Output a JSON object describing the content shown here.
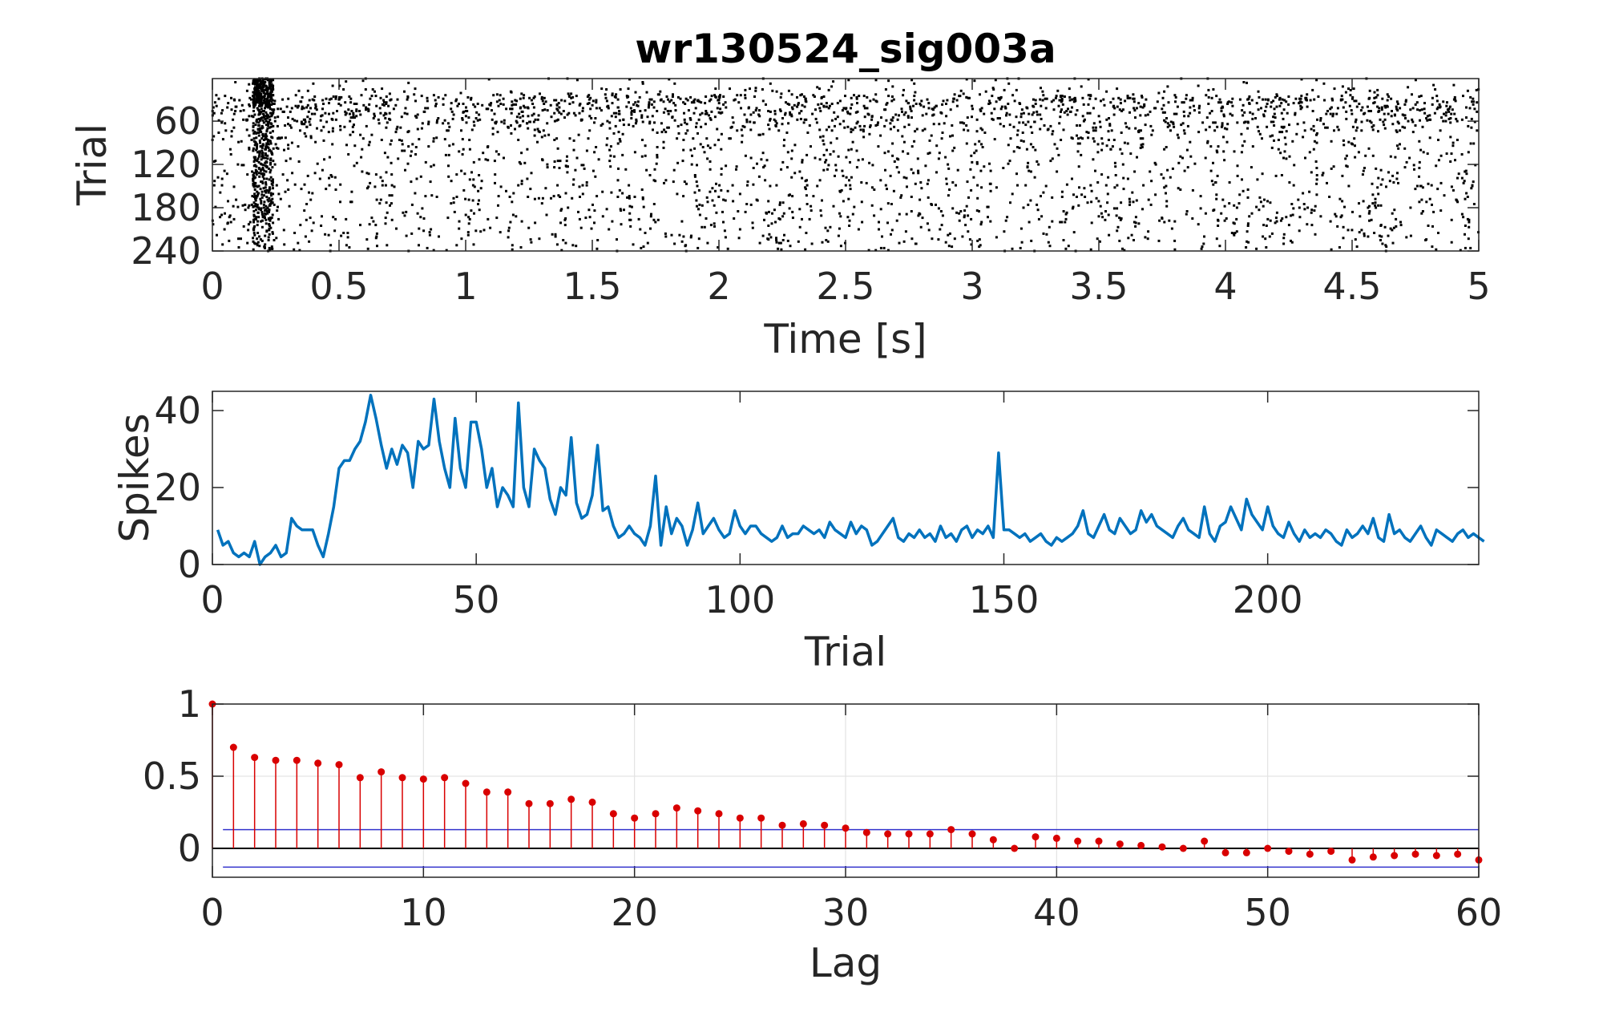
{
  "figure": {
    "title": "wr130524_sig003a"
  },
  "chart_data": [
    {
      "type": "scatter",
      "subtype": "raster",
      "xlabel": "Time [s]",
      "ylabel": "Trial",
      "xlim": [
        0,
        5
      ],
      "ylim": [
        1,
        240
      ],
      "y_reversed": true,
      "xticks": [
        0,
        0.5,
        1,
        1.5,
        2,
        2.5,
        3,
        3.5,
        4,
        4.5,
        5
      ],
      "xtick_labels": [
        "0",
        "0.5",
        "1",
        "1.5",
        "2",
        "2.5",
        "3",
        "3.5",
        "4",
        "4.5",
        "5"
      ],
      "yticks": [
        60,
        120,
        180,
        240
      ],
      "ytick_labels": [
        "60",
        "120",
        "180",
        "240"
      ],
      "grid": false,
      "marker_color": "#000000",
      "spike_count_profile": [
        9,
        5,
        6,
        3,
        2,
        3,
        2,
        6,
        0,
        2,
        3,
        5,
        2,
        3,
        12,
        10,
        9,
        9,
        9,
        5,
        2,
        8,
        15,
        25,
        27,
        27,
        30,
        32,
        37,
        44,
        38,
        31,
        25,
        30,
        26,
        31,
        29,
        20,
        32,
        30,
        31,
        43,
        32,
        25,
        20,
        38,
        25,
        20,
        37,
        37,
        30,
        20,
        25,
        15,
        20,
        18,
        15,
        42,
        20,
        15,
        30,
        27,
        25,
        17,
        13,
        20,
        18,
        33,
        16,
        12,
        13,
        18,
        31,
        14,
        15,
        10,
        7,
        8,
        10,
        8,
        7,
        5,
        10,
        23,
        5,
        15,
        8,
        12,
        10,
        5,
        9,
        16,
        8,
        10,
        12,
        9,
        7,
        8,
        14,
        10,
        8,
        10,
        10,
        8,
        7,
        6,
        7,
        10,
        7,
        8,
        8,
        10,
        9,
        8,
        9,
        7,
        11,
        9,
        8,
        7,
        11,
        8,
        10,
        9,
        5,
        6,
        8,
        10,
        12,
        7,
        6,
        8,
        7,
        9,
        7,
        8,
        6,
        10,
        7,
        8,
        6,
        9,
        10,
        7,
        9,
        8,
        10,
        7,
        29,
        9,
        9,
        8,
        7,
        8,
        6,
        7,
        8,
        6,
        5,
        7,
        6,
        7,
        8,
        10,
        14,
        8,
        7,
        10,
        13,
        9,
        8,
        12,
        10,
        8,
        9,
        14,
        11,
        13,
        10,
        9,
        8,
        7,
        10,
        12,
        9,
        8,
        7,
        15,
        8,
        6,
        10,
        11,
        15,
        12,
        9,
        17,
        13,
        11,
        9,
        15,
        10,
        8,
        7,
        11,
        8,
        6,
        9,
        7,
        8,
        7,
        9,
        8,
        6,
        5,
        9,
        7,
        8,
        10,
        8,
        12,
        7,
        6,
        13,
        8,
        9,
        7,
        6,
        8,
        10,
        7,
        5,
        9,
        8,
        7,
        6,
        8,
        9,
        7,
        8,
        7,
        6
      ],
      "early_response": {
        "center_s": 0.2,
        "width_s": 0.08,
        "trials": [
          1,
          240
        ]
      }
    },
    {
      "type": "line",
      "xlabel": "Trial",
      "ylabel": "Spikes",
      "xlim": [
        0,
        240
      ],
      "ylim": [
        0,
        45
      ],
      "xticks": [
        0,
        50,
        100,
        150,
        200
      ],
      "xtick_labels": [
        "0",
        "50",
        "100",
        "150",
        "200"
      ],
      "yticks": [
        0,
        20,
        40
      ],
      "ytick_labels": [
        "0",
        "20",
        "40"
      ],
      "grid": false,
      "series": [
        {
          "color": "#0072BD",
          "x_start": 1,
          "values": [
            9,
            5,
            6,
            3,
            2,
            3,
            2,
            6,
            0,
            2,
            3,
            5,
            2,
            3,
            12,
            10,
            9,
            9,
            9,
            5,
            2,
            8,
            15,
            25,
            27,
            27,
            30,
            32,
            37,
            44,
            38,
            31,
            25,
            30,
            26,
            31,
            29,
            20,
            32,
            30,
            31,
            43,
            32,
            25,
            20,
            38,
            25,
            20,
            37,
            37,
            30,
            20,
            25,
            15,
            20,
            18,
            15,
            42,
            20,
            15,
            30,
            27,
            25,
            17,
            13,
            20,
            18,
            33,
            16,
            12,
            13,
            18,
            31,
            14,
            15,
            10,
            7,
            8,
            10,
            8,
            7,
            5,
            10,
            23,
            5,
            15,
            8,
            12,
            10,
            5,
            9,
            16,
            8,
            10,
            12,
            9,
            7,
            8,
            14,
            10,
            8,
            10,
            10,
            8,
            7,
            6,
            7,
            10,
            7,
            8,
            8,
            10,
            9,
            8,
            9,
            7,
            11,
            9,
            8,
            7,
            11,
            8,
            10,
            9,
            5,
            6,
            8,
            10,
            12,
            7,
            6,
            8,
            7,
            9,
            7,
            8,
            6,
            10,
            7,
            8,
            6,
            9,
            10,
            7,
            9,
            8,
            10,
            7,
            29,
            9,
            9,
            8,
            7,
            8,
            6,
            7,
            8,
            6,
            5,
            7,
            6,
            7,
            8,
            10,
            14,
            8,
            7,
            10,
            13,
            9,
            8,
            12,
            10,
            8,
            9,
            14,
            11,
            13,
            10,
            9,
            8,
            7,
            10,
            12,
            9,
            8,
            7,
            15,
            8,
            6,
            10,
            11,
            15,
            12,
            9,
            17,
            13,
            11,
            9,
            15,
            10,
            8,
            7,
            11,
            8,
            6,
            9,
            7,
            8,
            7,
            9,
            8,
            6,
            5,
            9,
            7,
            8,
            10,
            8,
            12,
            7,
            6,
            13,
            8,
            9,
            7,
            6,
            8,
            10,
            7,
            5,
            9,
            8,
            7,
            6,
            8,
            9,
            7,
            8,
            7,
            6
          ]
        }
      ]
    },
    {
      "type": "scatter",
      "subtype": "stem",
      "xlabel": "Lag",
      "ylabel": "",
      "xlim": [
        0,
        60
      ],
      "ylim": [
        -0.2,
        1
      ],
      "xticks": [
        0,
        10,
        20,
        30,
        40,
        50,
        60
      ],
      "xtick_labels": [
        "0",
        "10",
        "20",
        "30",
        "40",
        "50",
        "60"
      ],
      "yticks": [
        0,
        0.5,
        1
      ],
      "ytick_labels": [
        "0",
        "0.5",
        "1"
      ],
      "grid": true,
      "stem_color": "#D90000",
      "confidence_bound": 0.13,
      "confidence_color": "#3333CC",
      "lags": [
        0,
        1,
        2,
        3,
        4,
        5,
        6,
        7,
        8,
        9,
        10,
        11,
        12,
        13,
        14,
        15,
        16,
        17,
        18,
        19,
        20,
        21,
        22,
        23,
        24,
        25,
        26,
        27,
        28,
        29,
        30,
        31,
        32,
        33,
        34,
        35,
        36,
        37,
        38,
        39,
        40,
        41,
        42,
        43,
        44,
        45,
        46,
        47,
        48,
        49,
        50,
        51,
        52,
        53,
        54,
        55,
        56,
        57,
        58,
        59,
        60
      ],
      "values": [
        1.0,
        0.7,
        0.63,
        0.61,
        0.61,
        0.59,
        0.58,
        0.49,
        0.53,
        0.49,
        0.48,
        0.49,
        0.45,
        0.39,
        0.39,
        0.31,
        0.31,
        0.34,
        0.32,
        0.24,
        0.21,
        0.24,
        0.28,
        0.26,
        0.24,
        0.21,
        0.21,
        0.16,
        0.17,
        0.16,
        0.14,
        0.11,
        0.1,
        0.1,
        0.1,
        0.13,
        0.1,
        0.06,
        0.0,
        0.08,
        0.07,
        0.05,
        0.05,
        0.03,
        0.02,
        0.01,
        0.0,
        0.05,
        -0.03,
        -0.03,
        0.0,
        -0.02,
        -0.04,
        -0.02,
        -0.08,
        -0.06,
        -0.05,
        -0.04,
        -0.05,
        -0.04,
        -0.08
      ]
    }
  ]
}
